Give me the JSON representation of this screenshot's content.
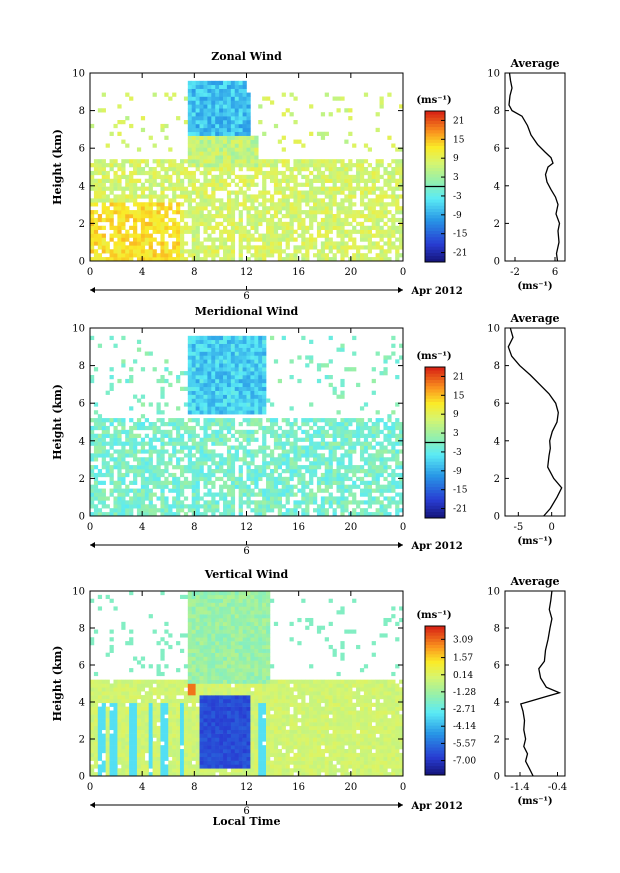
{
  "chart_data": [
    {
      "type": "heatmap",
      "title": "Zonal Wind",
      "ylabel": "Height (km)",
      "xlabel": "",
      "x_ticks": [
        "0",
        "4",
        "8",
        "12",
        "16",
        "20",
        "0"
      ],
      "y_ticks": [
        "0",
        "2",
        "4",
        "6",
        "8",
        "10"
      ],
      "xlim": [
        0,
        24
      ],
      "ylim": [
        0,
        10
      ],
      "date_marker": "6",
      "date_label": "Apr 2012",
      "colorbar": {
        "unit": "(ms⁻¹)",
        "range": [
          -24,
          24
        ],
        "ticks": [
          "21",
          "15",
          "9",
          "3",
          "-3",
          "-9",
          "-15",
          "-21"
        ]
      },
      "average_profile": {
        "title": "Average",
        "xlabel": "(ms⁻¹)",
        "x_ticks": [
          "-2",
          "6"
        ],
        "xlim": [
          -4,
          8
        ],
        "y_ticks": [
          "0",
          "2",
          "4",
          "6",
          "8",
          "10"
        ],
        "ylim": [
          0,
          10
        ],
        "points": [
          [
            6.5,
            0
          ],
          [
            6.3,
            0.4
          ],
          [
            6.8,
            1.0
          ],
          [
            6.6,
            1.6
          ],
          [
            6.9,
            2.0
          ],
          [
            6.2,
            2.5
          ],
          [
            6.6,
            3.0
          ],
          [
            6.1,
            3.4
          ],
          [
            5.2,
            3.8
          ],
          [
            4.4,
            4.2
          ],
          [
            4.1,
            4.6
          ],
          [
            4.6,
            5.0
          ],
          [
            5.6,
            5.2
          ],
          [
            5.2,
            5.5
          ],
          [
            4.0,
            5.8
          ],
          [
            2.5,
            6.2
          ],
          [
            1.2,
            6.7
          ],
          [
            0.5,
            7.2
          ],
          [
            -0.6,
            7.7
          ],
          [
            -2.6,
            8.0
          ],
          [
            -3.2,
            8.3
          ],
          [
            -3.0,
            8.8
          ],
          [
            -2.6,
            9.2
          ],
          [
            -2.9,
            9.6
          ],
          [
            -3.1,
            10
          ]
        ]
      }
    },
    {
      "type": "heatmap",
      "title": "Meridional Wind",
      "ylabel": "Height (km)",
      "xlabel": "",
      "x_ticks": [
        "0",
        "4",
        "8",
        "12",
        "16",
        "20",
        "0"
      ],
      "y_ticks": [
        "0",
        "2",
        "4",
        "6",
        "8",
        "10"
      ],
      "xlim": [
        0,
        24
      ],
      "ylim": [
        0,
        10
      ],
      "date_marker": "6",
      "date_label": "Apr 2012",
      "colorbar": {
        "unit": "(ms⁻¹)",
        "range": [
          -24,
          24
        ],
        "ticks": [
          "21",
          "15",
          "9",
          "3",
          "-3",
          "-9",
          "-15",
          "-21"
        ]
      },
      "average_profile": {
        "title": "Average",
        "xlabel": "(ms⁻¹)",
        "x_ticks": [
          "-5",
          "0"
        ],
        "xlim": [
          -7,
          2
        ],
        "y_ticks": [
          "0",
          "2",
          "4",
          "6",
          "8",
          "10"
        ],
        "ylim": [
          0,
          10
        ],
        "points": [
          [
            -1.2,
            0
          ],
          [
            -0.2,
            0.4
          ],
          [
            0.8,
            1.0
          ],
          [
            1.5,
            1.5
          ],
          [
            0.3,
            2.0
          ],
          [
            -0.6,
            2.6
          ],
          [
            -0.4,
            3.2
          ],
          [
            -0.2,
            3.6
          ],
          [
            -0.3,
            4.0
          ],
          [
            0.1,
            4.5
          ],
          [
            0.8,
            5.0
          ],
          [
            1.0,
            5.5
          ],
          [
            0.6,
            6.0
          ],
          [
            -0.4,
            6.5
          ],
          [
            -1.8,
            7.0
          ],
          [
            -3.2,
            7.5
          ],
          [
            -4.8,
            8.0
          ],
          [
            -6.0,
            8.5
          ],
          [
            -6.5,
            9.0
          ],
          [
            -5.8,
            9.5
          ],
          [
            -6.2,
            10
          ]
        ]
      }
    },
    {
      "type": "heatmap",
      "title": "Vertical Wind",
      "ylabel": "Height (km)",
      "xlabel": "Local Time",
      "x_ticks": [
        "0",
        "4",
        "8",
        "12",
        "16",
        "20",
        "0"
      ],
      "y_ticks": [
        "0",
        "2",
        "4",
        "6",
        "8",
        "10"
      ],
      "xlim": [
        0,
        24
      ],
      "ylim": [
        0,
        10
      ],
      "date_marker": "6",
      "date_label": "Apr 2012",
      "colorbar": {
        "unit": "(ms⁻¹)",
        "range": [
          -8.2,
          4.2
        ],
        "ticks": [
          "3.09",
          "1.57",
          "0.14",
          "-1.28",
          "-2.71",
          "-4.14",
          "-5.57",
          "-7.00"
        ]
      },
      "average_profile": {
        "title": "Average",
        "xlabel": "(ms⁻¹)",
        "x_ticks": [
          "-1.4",
          "-0.4"
        ],
        "xlim": [
          -1.8,
          -0.2
        ],
        "y_ticks": [
          "0",
          "2",
          "4",
          "6",
          "8",
          "10"
        ],
        "ylim": [
          0,
          10
        ],
        "points": [
          [
            -1.05,
            0
          ],
          [
            -1.15,
            0.4
          ],
          [
            -1.25,
            0.8
          ],
          [
            -1.2,
            1.2
          ],
          [
            -1.3,
            1.6
          ],
          [
            -1.25,
            2.0
          ],
          [
            -1.3,
            2.5
          ],
          [
            -1.28,
            3.0
          ],
          [
            -1.32,
            3.5
          ],
          [
            -1.38,
            3.9
          ],
          [
            -1.2,
            4.0
          ],
          [
            -0.7,
            4.3
          ],
          [
            -0.35,
            4.5
          ],
          [
            -0.7,
            4.8
          ],
          [
            -0.85,
            5.3
          ],
          [
            -0.9,
            5.8
          ],
          [
            -0.75,
            6.2
          ],
          [
            -0.72,
            6.8
          ],
          [
            -0.65,
            7.4
          ],
          [
            -0.6,
            8.0
          ],
          [
            -0.55,
            8.5
          ],
          [
            -0.62,
            9.0
          ],
          [
            -0.58,
            9.5
          ],
          [
            -0.55,
            10
          ]
        ]
      }
    }
  ]
}
